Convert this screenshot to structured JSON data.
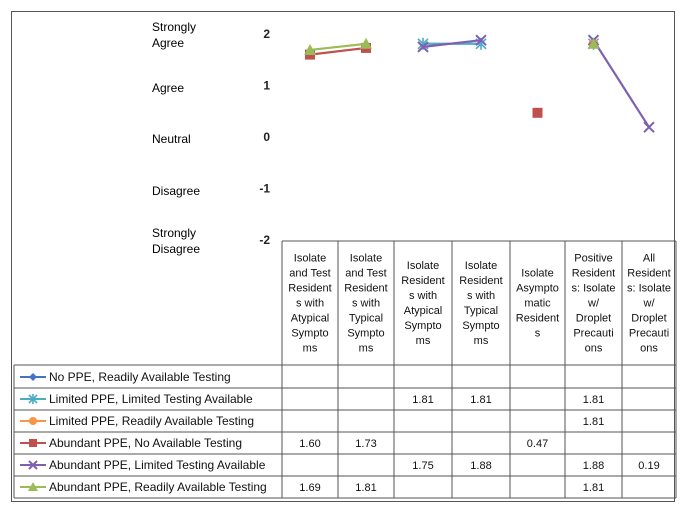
{
  "scale_labels": [
    {
      "text": "Strongly\nAgree",
      "value": 2
    },
    {
      "text": "Agree",
      "value": 1
    },
    {
      "text": "Neutral",
      "value": 0
    },
    {
      "text": "Disagree",
      "value": -1
    },
    {
      "text": "Strongly\nDisagree",
      "value": -2
    }
  ],
  "chart_data": {
    "type": "line",
    "title": "",
    "xlabel": "",
    "ylabel": "",
    "ylim": [
      -2,
      2
    ],
    "yticks": [
      "2",
      "1",
      "0",
      "-1",
      "-2"
    ],
    "grid": false,
    "legend_placement": "data table rows",
    "categories": [
      "Isolate and Test Resident s with Atypical Sympto ms",
      "Isolate and Test Resident s with Typical Sympto ms",
      "Isolate Resident s with Atypical Sympto ms",
      "Isolate Resident s with Typical Sympto ms",
      "Isolate Asympto matic Resident s",
      "Positive Resident s: Isolate w/ Droplet Precauti ons",
      "All Resident s: Isolate w/ Droplet Precauti ons"
    ],
    "category_lines": [
      [
        "Isolate",
        "and Test",
        "Resident",
        "s with",
        "Atypical",
        "Sympto",
        "ms"
      ],
      [
        "Isolate",
        "and Test",
        "Resident",
        "s with",
        "Typical",
        "Sympto",
        "ms"
      ],
      [
        "Isolate",
        "Resident",
        "s with",
        "Atypical",
        "Sympto",
        "ms"
      ],
      [
        "Isolate",
        "Resident",
        "s with",
        "Typical",
        "Sympto",
        "ms"
      ],
      [
        "Isolate",
        "Asympto",
        "matic",
        "Resident",
        "s"
      ],
      [
        "Positive",
        "Resident",
        "s: Isolate",
        "w/",
        "Droplet",
        "Precauti",
        "ons"
      ],
      [
        "All",
        "Resident",
        "s: Isolate",
        "w/",
        "Droplet",
        "Precauti",
        "ons"
      ]
    ],
    "series": [
      {
        "name": "No PPE, Readily Available Testing",
        "color": "#4472C4",
        "marker": "diamond",
        "values": [
          null,
          null,
          null,
          null,
          null,
          null,
          null
        ],
        "labels": [
          "",
          "",
          "",
          "",
          "",
          "",
          ""
        ]
      },
      {
        "name": "Limited PPE, Limited Testing Available",
        "color": "#4BACC6",
        "marker": "star",
        "values": [
          null,
          null,
          1.81,
          1.81,
          null,
          1.81,
          null
        ],
        "labels": [
          "",
          "",
          "1.81",
          "1.81",
          "",
          "1.81",
          ""
        ]
      },
      {
        "name": "Limited PPE, Readily Available Testing",
        "color": "#F79646",
        "marker": "circle",
        "values": [
          null,
          null,
          null,
          null,
          null,
          1.81,
          null
        ],
        "labels": [
          "",
          "",
          "",
          "",
          "",
          "1.81",
          ""
        ]
      },
      {
        "name": "Abundant PPE, No Available Testing",
        "color": "#C0504D",
        "marker": "square",
        "values": [
          1.6,
          1.73,
          null,
          null,
          0.47,
          null,
          null
        ],
        "labels": [
          "1.60",
          "1.73",
          "",
          "",
          "0.47",
          "",
          ""
        ]
      },
      {
        "name": "Abundant PPE, Limited Testing Available",
        "color": "#7F5FB2",
        "marker": "x",
        "values": [
          null,
          null,
          1.75,
          1.88,
          null,
          1.88,
          0.19
        ],
        "labels": [
          "",
          "",
          "1.75",
          "1.88",
          "",
          "1.88",
          "0.19"
        ]
      },
      {
        "name": "Abundant PPE, Readily Available Testing",
        "color": "#9BBB59",
        "marker": "triangle",
        "values": [
          1.69,
          1.81,
          null,
          null,
          null,
          1.81,
          null
        ],
        "labels": [
          "1.69",
          "1.81",
          "",
          "",
          "",
          "1.81",
          ""
        ]
      }
    ]
  }
}
